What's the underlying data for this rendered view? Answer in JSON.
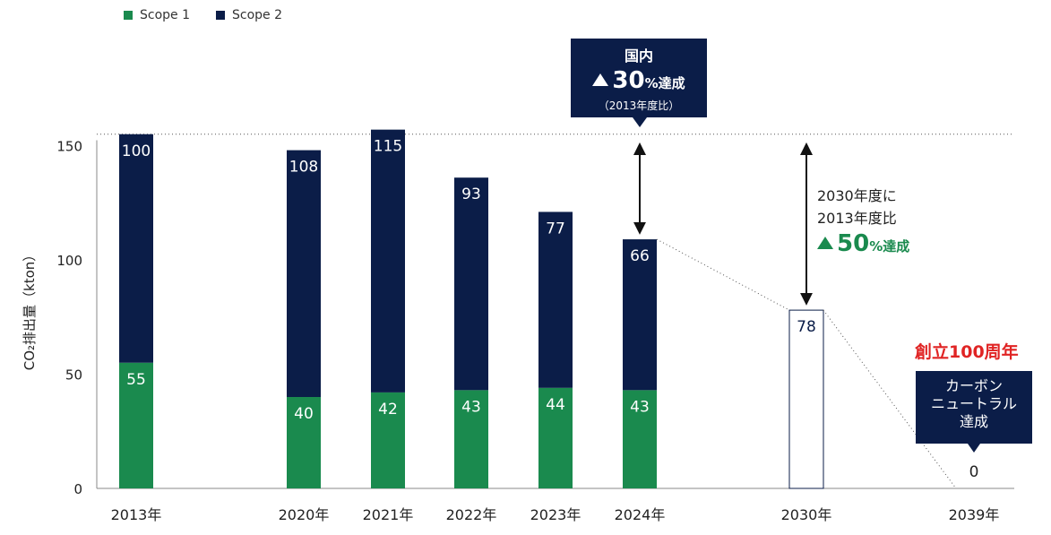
{
  "legend": [
    {
      "label": "Scope 1",
      "color": "#1a8a4e"
    },
    {
      "label": "Scope 2",
      "color": "#0b1d48"
    }
  ],
  "callouts": {
    "top": {
      "line1": "国内",
      "pct": "30",
      "suffix": "%達成",
      "note": "（2013年度比）"
    },
    "side": {
      "line1": "2030年度に",
      "line2": "2013年度比",
      "pct": "50",
      "suffix": "%達成"
    },
    "anniversary": "創立100周年",
    "carbon_neutral": [
      "カーボン",
      "ニュートラル",
      "達成"
    ]
  },
  "chart_data": {
    "type": "bar",
    "stacked": true,
    "ylabel": "CO₂排出量（kton）",
    "xlabel": "",
    "ylim": [
      0,
      150
    ],
    "yticks": [
      0,
      50,
      100,
      150
    ],
    "grid": false,
    "legend_position": "top-left",
    "categories": [
      "2013年",
      "2020年",
      "2021年",
      "2022年",
      "2023年",
      "2024年",
      "2030年",
      "2039年"
    ],
    "series": [
      {
        "name": "Scope 1",
        "color": "#1a8a4e",
        "values": [
          55,
          40,
          42,
          43,
          44,
          43,
          null,
          null
        ]
      },
      {
        "name": "Scope 2",
        "color": "#0b1d48",
        "values": [
          100,
          108,
          115,
          93,
          77,
          66,
          null,
          null
        ]
      }
    ],
    "targets": [
      {
        "category": "2030年",
        "value": 78
      },
      {
        "category": "2039年",
        "value": 0
      }
    ],
    "reference_line": 155
  }
}
